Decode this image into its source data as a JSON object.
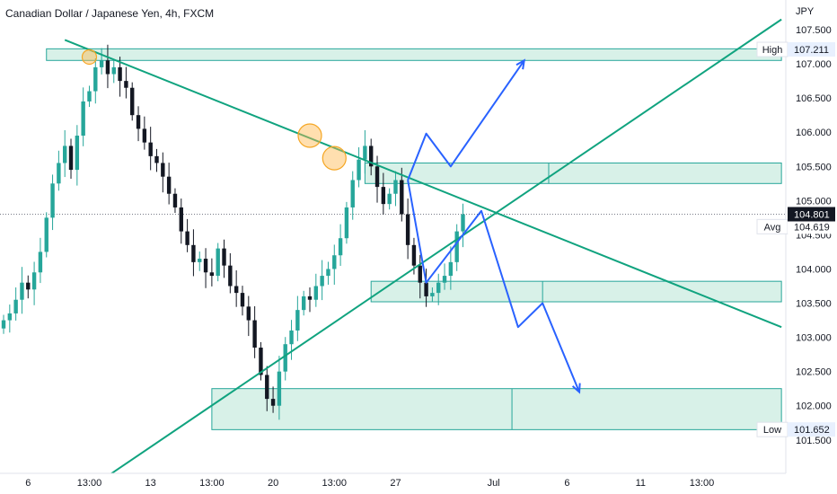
{
  "header": {
    "title": "Canadian Dollar / Japanese Yen, 4h, FXCM"
  },
  "chart_data": {
    "type": "candlestick",
    "title": "Canadian Dollar / Japanese Yen, 4h, FXCM",
    "currency": "JPY",
    "ylim": [
      101.3,
      107.75
    ],
    "y_ticks": [
      "107.500",
      "107.000",
      "106.500",
      "106.000",
      "105.500",
      "105.000",
      "104.500",
      "104.000",
      "103.500",
      "103.000",
      "102.500",
      "102.000",
      "101.500"
    ],
    "x_ticks": [
      {
        "label": "6",
        "t": 4
      },
      {
        "label": "13:00",
        "t": 14
      },
      {
        "label": "13",
        "t": 24
      },
      {
        "label": "13:00",
        "t": 34
      },
      {
        "label": "20",
        "t": 44
      },
      {
        "label": "13:00",
        "t": 54
      },
      {
        "label": "27",
        "t": 64
      },
      {
        "label": "Jul",
        "t": 80
      },
      {
        "label": "6",
        "t": 92
      },
      {
        "label": "11",
        "t": 104
      },
      {
        "label": "13:00",
        "t": 114
      }
    ],
    "price_labels": {
      "high": {
        "label": "High",
        "value": "107.211"
      },
      "current": {
        "value": "104.801"
      },
      "avg": {
        "label": "Avg",
        "value": "104.619"
      },
      "low": {
        "label": "Low",
        "value": "101.652"
      }
    },
    "closes": [
      103.25,
      103.35,
      103.55,
      103.8,
      103.7,
      103.95,
      104.25,
      104.75,
      105.25,
      105.55,
      105.8,
      105.45,
      105.95,
      106.45,
      106.6,
      106.95,
      107.05,
      106.85,
      106.95,
      106.75,
      106.65,
      106.25,
      106.05,
      105.85,
      105.65,
      105.55,
      105.35,
      105.1,
      104.9,
      104.55,
      104.35,
      104.1,
      104.15,
      103.95,
      103.9,
      104.3,
      104.05,
      103.75,
      103.65,
      103.45,
      103.25,
      102.85,
      102.45,
      102.1,
      102.0,
      102.5,
      102.9,
      103.1,
      103.4,
      103.6,
      103.55,
      103.75,
      103.9,
      104.0,
      104.2,
      104.45,
      104.9,
      105.3,
      105.6,
      105.8,
      105.5,
      105.2,
      104.95,
      105.1,
      105.3,
      104.8,
      104.35,
      104.05,
      103.8,
      103.6,
      103.65,
      103.8,
      103.9,
      104.1,
      104.55,
      104.8
    ],
    "series": [
      {
        "name": "Current price",
        "value": 104.801
      },
      {
        "name": "High",
        "value": 107.211
      },
      {
        "name": "Low",
        "value": 101.652
      }
    ],
    "zones": [
      {
        "t1": 7,
        "t2": 127,
        "y1": 107.05,
        "y2": 107.22
      },
      {
        "t1": 59,
        "t2": 127,
        "y1": 105.25,
        "y2": 105.55,
        "divider_t": 89
      },
      {
        "t1": 60,
        "t2": 127,
        "y1": 103.52,
        "y2": 103.82,
        "divider_t": 88
      },
      {
        "t1": 34,
        "t2": 127,
        "y1": 101.65,
        "y2": 102.25,
        "divider_t": 83
      }
    ],
    "trendlines": [
      {
        "t1": 10,
        "v1": 107.35,
        "t2": 127,
        "v2": 103.15
      },
      {
        "t1": 15,
        "v1": 100.85,
        "t2": 127,
        "v2": 107.65
      }
    ],
    "circles": [
      {
        "t": 14,
        "v": 107.1,
        "r": 8
      },
      {
        "t": 50,
        "v": 105.95,
        "r": 13
      },
      {
        "t": 54,
        "v": 105.62,
        "r": 13
      }
    ],
    "projections": [
      [
        [
          66,
          105.3
        ],
        [
          69,
          105.98
        ],
        [
          73,
          105.5
        ],
        [
          85,
          107.05
        ]
      ],
      [
        [
          66,
          105.3
        ],
        [
          69,
          103.8
        ],
        [
          78,
          104.85
        ],
        [
          84,
          103.15
        ],
        [
          88,
          103.5
        ],
        [
          94,
          102.2
        ]
      ]
    ]
  },
  "colors": {
    "up": "#26a69a",
    "down": "#131722",
    "zone_fill": "#d4efe6",
    "zone_border": "#26a69a",
    "trend": "#10a37f",
    "projection": "#2962ff",
    "circle_fill": "rgba(255,183,77,0.45)",
    "circle_stroke": "#f5a623",
    "axis_text": "#131722",
    "price_tag_bg": "#131722"
  }
}
